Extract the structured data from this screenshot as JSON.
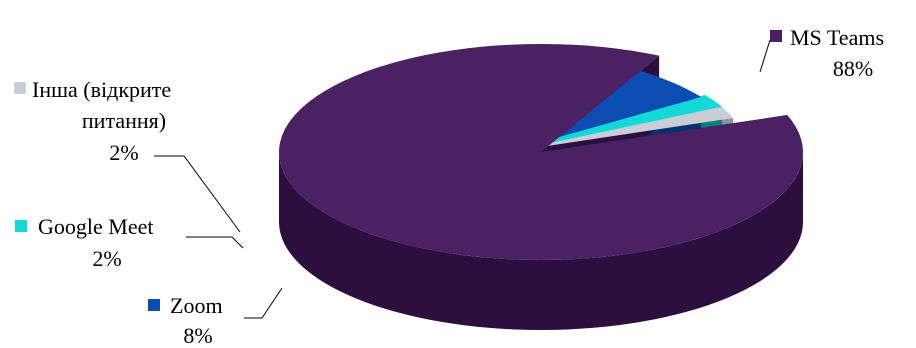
{
  "chart_data": {
    "type": "pie",
    "style": "3d-exploded",
    "categories": [
      "MS Teams",
      "Zoom",
      "Google Meet",
      "Інша (відкрите питання)"
    ],
    "values": [
      88,
      8,
      2,
      2
    ],
    "labels": [
      {
        "name": "MS Teams",
        "value": "88%"
      },
      {
        "name": "Zoom",
        "value": "8%"
      },
      {
        "name": "Google Meet",
        "value": "2%"
      },
      {
        "name_lines": [
          "Інша (відкрите",
          "питання)"
        ],
        "value": "2%"
      }
    ],
    "colors": [
      "#4a2163",
      "#0c4db3",
      "#14d8d8",
      "#c8cdd6"
    ],
    "side_colors": [
      "#2c0f3e",
      "#063070",
      "#0a7d7d",
      "#8c929c"
    ],
    "title": "",
    "xlabel": "",
    "ylabel": ""
  }
}
